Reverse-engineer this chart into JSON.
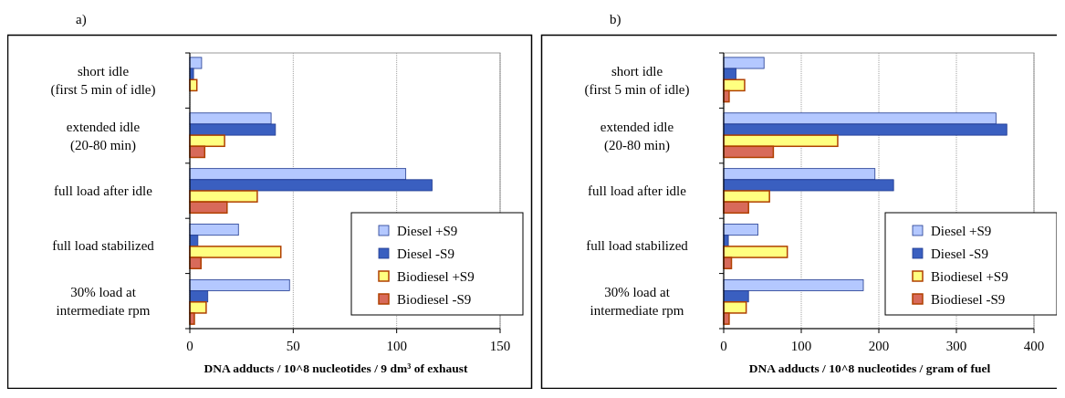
{
  "chart_data": [
    {
      "type": "bar",
      "orientation": "horizontal",
      "title": "a)",
      "xlabel": "DNA adducts / 10^8 nucleotides / 9 dm³ of exhaust",
      "categories": [
        "short idle\n(first 5 min of idle)",
        "extended idle\n(20-80 min)",
        "full load after idle",
        "full load stabilized",
        "30% load at\nintermediate rpm"
      ],
      "series": [
        {
          "name": "Diesel +S9",
          "color": "#b4c8ff",
          "values": [
            5.7,
            39.3,
            104.4,
            23.5,
            48.2
          ]
        },
        {
          "name": "Diesel -S9",
          "color": "#3a5fc0",
          "values": [
            1.8,
            41.4,
            117.1,
            3.9,
            8.7
          ]
        },
        {
          "name": "Biodiesel +S9",
          "color": "#ffff80",
          "values": [
            3.4,
            16.8,
            32.6,
            44,
            7.9
          ]
        },
        {
          "name": "Biodiesel -S9",
          "color": "#d86a5a",
          "values": [
            0,
            7.2,
            18,
            5.4,
            2.2
          ]
        }
      ],
      "xlim": [
        0,
        150
      ],
      "xticks": [
        0,
        50,
        100,
        150
      ],
      "grid": "x",
      "legend": "bottom right"
    },
    {
      "type": "bar",
      "orientation": "horizontal",
      "title": "b)",
      "xlabel": "DNA adducts / 10^8 nucleotides / gram of fuel",
      "categories": [
        "short idle\n(first 5 min of idle)",
        "extended idle\n(20-80 min)",
        "full load after idle",
        "full load stabilized",
        "30% load at\nintermediate rpm"
      ],
      "series": [
        {
          "name": "Diesel +S9",
          "color": "#b4c8ff",
          "values": [
            52,
            351,
            195,
            44,
            180
          ]
        },
        {
          "name": "Diesel -S9",
          "color": "#3a5fc0",
          "values": [
            16,
            365,
            219,
            6,
            32
          ]
        },
        {
          "name": "Biodiesel +S9",
          "color": "#ffff80",
          "values": [
            27,
            147,
            59,
            82,
            29
          ]
        },
        {
          "name": "Biodiesel -S9",
          "color": "#d86a5a",
          "values": [
            7,
            64,
            32,
            10,
            7
          ]
        }
      ],
      "xlim": [
        0,
        400
      ],
      "xticks": [
        0,
        100,
        200,
        300,
        400
      ],
      "grid": "x",
      "legend": "bottom right"
    }
  ]
}
